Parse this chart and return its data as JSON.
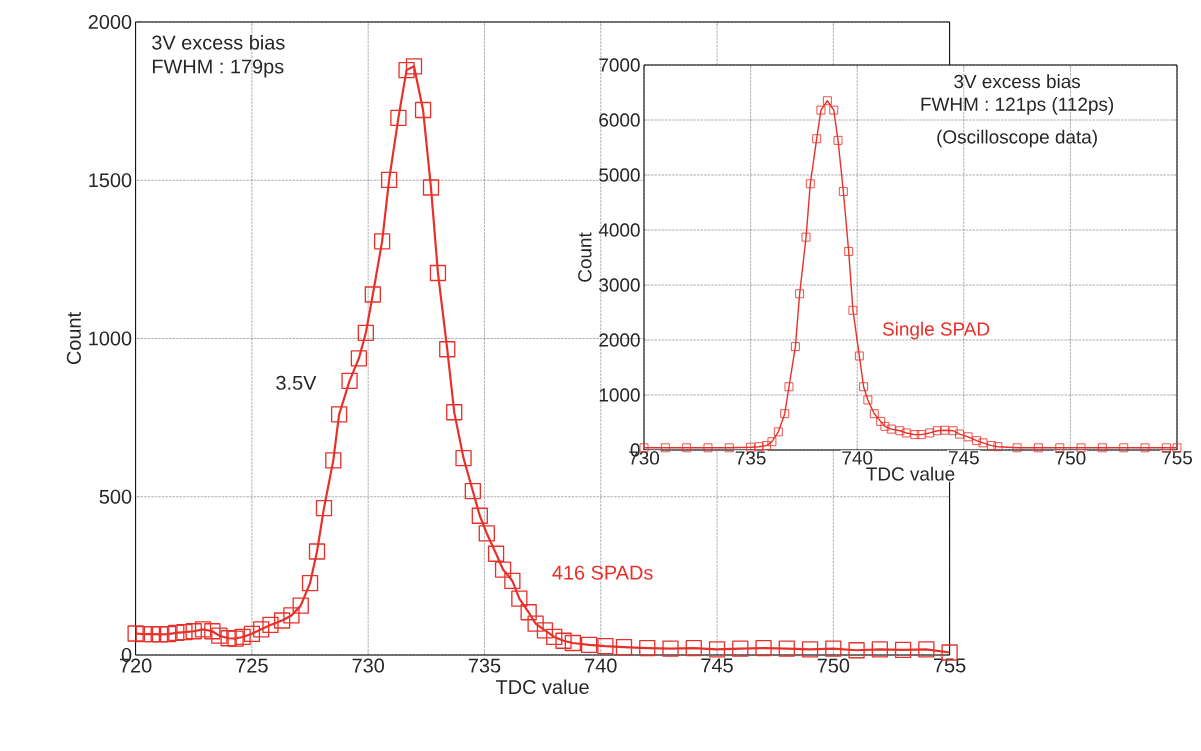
{
  "chart_data": [
    {
      "type": "line",
      "xlabel": "TDC value",
      "ylabel": "Count",
      "xlim": [
        720,
        755
      ],
      "ylim": [
        0,
        2000
      ],
      "xticks": [
        720,
        725,
        730,
        735,
        740,
        745,
        750,
        755
      ],
      "yticks": [
        0,
        500,
        1000,
        1500,
        2000
      ],
      "grid": true,
      "marker": "square",
      "line_style": "solid",
      "annotations": [
        "3V excess bias",
        "FWHM : 179ps",
        "3.5V"
      ],
      "x": [
        720,
        720.35,
        720.7,
        721.05,
        721.4,
        721.75,
        722.1,
        722.5,
        722.9,
        723.3,
        723.6,
        724.0,
        724.3,
        724.6,
        725.0,
        725.4,
        725.8,
        726.3,
        726.7,
        727.1,
        727.5,
        727.8,
        728.1,
        728.5,
        728.75,
        729.2,
        729.6,
        729.9,
        730.2,
        730.6,
        730.9,
        731.3,
        731.65,
        731.97,
        732.36,
        732.7,
        733.0,
        733.4,
        733.7,
        734.1,
        734.5,
        734.8,
        735.1,
        735.5,
        735.8,
        736.2,
        736.5,
        736.9,
        737.2,
        737.6,
        738.0,
        738.4,
        738.8,
        739.5,
        740.2,
        741,
        742,
        743,
        744,
        745,
        746,
        747,
        748,
        749,
        750,
        751,
        752,
        753,
        754,
        755
      ],
      "series": [
        {
          "name": "416 SPADs",
          "color": "#e8302a",
          "values": [
            68,
            66,
            66,
            65,
            66,
            70,
            72,
            75,
            81,
            75,
            61,
            53,
            52,
            57,
            67,
            81,
            95,
            109,
            125,
            156,
            227,
            327,
            464,
            615,
            760,
            866,
            937,
            1018,
            1139,
            1307,
            1501,
            1697,
            1848,
            1860,
            1722,
            1477,
            1207,
            966,
            767,
            622,
            518,
            440,
            384,
            320,
            270,
            234,
            178,
            135,
            99,
            78,
            57,
            45,
            38,
            32,
            28,
            25,
            22,
            20,
            22,
            18,
            20,
            22,
            20,
            18,
            20,
            15,
            18,
            16,
            18,
            8
          ]
        }
      ]
    },
    {
      "type": "line",
      "xlabel": "TDC value",
      "ylabel": "Count",
      "xlim": [
        730,
        755
      ],
      "ylim": [
        0,
        7000
      ],
      "xticks": [
        730,
        735,
        740,
        745,
        750,
        755
      ],
      "yticks": [
        0,
        1000,
        2000,
        3000,
        4000,
        5000,
        6000,
        7000
      ],
      "grid": true,
      "marker": "square",
      "line_style": "solid",
      "annotations": [
        "3V excess bias",
        "FWHM : 121ps (112ps)",
        "(Oscilloscope data)"
      ],
      "x": [
        730,
        731,
        732,
        733,
        734,
        735,
        735.4,
        735.75,
        736.0,
        736.3,
        736.6,
        736.8,
        737.1,
        737.3,
        737.6,
        737.8,
        738.1,
        738.3,
        738.6,
        738.9,
        739.1,
        739.35,
        739.6,
        739.8,
        740.1,
        740.3,
        740.5,
        740.8,
        741.1,
        741.3,
        741.6,
        742.0,
        742.3,
        742.7,
        743.0,
        743.4,
        743.75,
        744.1,
        744.5,
        744.8,
        745.2,
        745.6,
        745.9,
        746.3,
        746.6,
        747.5,
        748.5,
        749.5,
        750.5,
        751.5,
        752.5,
        753.5,
        754.5,
        755
      ],
      "series": [
        {
          "name": "Single SPAD",
          "color": "#e8302a",
          "values": [
            40,
            40,
            40,
            40,
            40,
            50,
            60,
            80,
            150,
            330,
            660,
            1150,
            1880,
            2840,
            3870,
            4840,
            5660,
            6180,
            6350,
            6180,
            5630,
            4700,
            3610,
            2540,
            1710,
            1150,
            910,
            660,
            520,
            430,
            380,
            350,
            310,
            280,
            280,
            310,
            350,
            360,
            350,
            290,
            240,
            170,
            130,
            80,
            60,
            40,
            40,
            40,
            40,
            40,
            40,
            40,
            40,
            40
          ]
        }
      ]
    }
  ]
}
